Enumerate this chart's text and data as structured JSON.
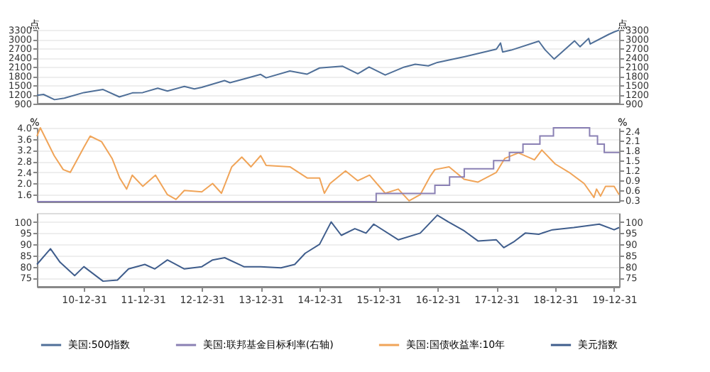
{
  "chart_data": [
    {
      "type": "line",
      "ylabel": "点",
      "y2label": "点",
      "grid": "y",
      "legend": "bottom",
      "tick_labels": "y",
      "xlim": [
        "2010-03-15",
        "2020-01-31"
      ],
      "ylim": [
        900,
        3300
      ],
      "yticks": [
        900,
        1200,
        1500,
        1800,
        2100,
        2400,
        2700,
        3000,
        3300
      ],
      "y2lim": [
        900,
        3300
      ],
      "y2ticks": [
        900,
        1200,
        1500,
        1800,
        2100,
        2400,
        2700,
        3000,
        3300
      ],
      "series": [
        {
          "name": "美国:500指数",
          "color": "#4f6f98",
          "x": [
            "2010-03-15",
            "2010-04-25",
            "2010-07-02",
            "2010-09-01",
            "2010-12-31",
            "2011-04-29",
            "2011-08-08",
            "2011-10-28",
            "2011-12-31",
            "2012-04-02",
            "2012-06-01",
            "2012-09-14",
            "2012-11-15",
            "2012-12-31",
            "2013-05-21",
            "2013-06-24",
            "2013-09-18",
            "2013-12-31",
            "2014-02-03",
            "2014-06-30",
            "2014-10-15",
            "2014-12-31",
            "2015-05-21",
            "2015-08-25",
            "2015-11-03",
            "2016-02-11",
            "2016-06-08",
            "2016-08-15",
            "2016-11-04",
            "2016-12-31",
            "2017-06-19",
            "2017-12-31",
            "2018-01-26",
            "2018-02-08",
            "2018-04-02",
            "2018-09-20",
            "2018-10-29",
            "2018-12-24",
            "2019-04-30",
            "2019-06-03",
            "2019-07-26",
            "2019-08-05",
            "2019-11-27",
            "2019-12-31",
            "2020-01-31"
          ],
          "values": [
            1170,
            1200,
            1030,
            1080,
            1260,
            1360,
            1120,
            1250,
            1260,
            1400,
            1310,
            1460,
            1380,
            1430,
            1650,
            1580,
            1700,
            1850,
            1740,
            1960,
            1860,
            2060,
            2120,
            1870,
            2090,
            1830,
            2090,
            2180,
            2130,
            2240,
            2430,
            2670,
            2870,
            2580,
            2640,
            2930,
            2650,
            2350,
            2940,
            2750,
            3020,
            2840,
            3150,
            3230,
            3290
          ]
        }
      ]
    },
    {
      "type": "line",
      "ylabel": "%",
      "y2label": "%",
      "grid": "y",
      "legend": "bottom",
      "tick_labels": "y",
      "xlim": [
        "2010-03-15",
        "2020-01-31"
      ],
      "ylim": [
        1.35,
        4.0
      ],
      "yticks": [
        1.6,
        {
          "value": 2,
          "label": "2.0"
        },
        2.4,
        2.8,
        3.2,
        3.6,
        {
          "value": 4,
          "label": "4.0"
        }
      ],
      "y2lim": [
        0.25,
        2.5
      ],
      "y2ticks": [
        0.3,
        0.6,
        0.9,
        1.2,
        1.5,
        1.8,
        2.1,
        2.4
      ],
      "series": [
        {
          "name": "美国:联邦基金目标利率(右轴)",
          "color": "#8a80b4",
          "type": "step",
          "axis": "y2",
          "x": [
            "2010-03-15",
            "2015-12-17",
            "2016-12-15",
            "2017-03-16",
            "2017-06-15",
            "2017-12-14",
            "2018-03-22",
            "2018-06-14",
            "2018-09-27",
            "2018-12-20",
            "2019-08-01",
            "2019-09-19",
            "2019-10-31",
            "2020-01-31"
          ],
          "values": [
            0.25,
            0.5,
            0.75,
            1.0,
            1.25,
            1.5,
            1.75,
            2.0,
            2.25,
            2.5,
            2.25,
            2.0,
            1.75,
            1.75
          ]
        },
        {
          "name": "美国:国债收益率:10年",
          "color": "#f0a458",
          "x": [
            "2010-03-15",
            "2010-04-05",
            "2010-06-30",
            "2010-08-25",
            "2010-10-08",
            "2010-12-31",
            "2011-02-08",
            "2011-04-20",
            "2011-06-24",
            "2011-08-10",
            "2011-09-22",
            "2011-10-27",
            "2011-12-31",
            "2012-03-19",
            "2012-06-01",
            "2012-07-24",
            "2012-09-14",
            "2012-12-31",
            "2013-03-08",
            "2013-05-02",
            "2013-07-05",
            "2013-09-05",
            "2013-11-01",
            "2013-12-31",
            "2014-02-03",
            "2014-06-30",
            "2014-10-15",
            "2014-12-31",
            "2015-01-30",
            "2015-03-06",
            "2015-06-10",
            "2015-08-24",
            "2015-11-06",
            "2016-02-11",
            "2016-05-02",
            "2016-07-08",
            "2016-09-15",
            "2016-11-15",
            "2016-12-15",
            "2017-03-13",
            "2017-06-14",
            "2017-09-07",
            "2017-12-31",
            "2018-02-21",
            "2018-05-17",
            "2018-08-24",
            "2018-10-09",
            "2018-12-31",
            "2019-03-27",
            "2019-06-28",
            "2019-08-28",
            "2019-09-13",
            "2019-10-08",
            "2019-11-08",
            "2019-12-31",
            "2020-01-31"
          ],
          "values": [
            3.7,
            4.0,
            3.0,
            2.5,
            2.4,
            3.3,
            3.7,
            3.5,
            2.9,
            2.2,
            1.8,
            2.3,
            1.9,
            2.3,
            1.6,
            1.43,
            1.75,
            1.7,
            2.0,
            1.65,
            2.6,
            2.95,
            2.6,
            3.0,
            2.65,
            2.6,
            2.2,
            2.2,
            1.65,
            2.0,
            2.45,
            2.1,
            2.3,
            1.65,
            1.8,
            1.38,
            1.6,
            2.25,
            2.5,
            2.6,
            2.15,
            2.05,
            2.4,
            2.9,
            3.1,
            2.85,
            3.2,
            2.7,
            2.4,
            2.0,
            1.5,
            1.8,
            1.55,
            1.9,
            1.9,
            1.6
          ]
        }
      ]
    },
    {
      "type": "line",
      "grid": "y",
      "legend": "bottom",
      "xlim": [
        "2010-03-15",
        "2020-01-31"
      ],
      "xticks": [
        {
          "value": "2010-12-31",
          "label": "10-12-31"
        },
        {
          "value": "2011-12-31",
          "label": "11-12-31"
        },
        {
          "value": "2012-12-31",
          "label": "12-12-31"
        },
        {
          "value": "2013-12-31",
          "label": "13-12-31"
        },
        {
          "value": "2014-12-31",
          "label": "14-12-31"
        },
        {
          "value": "2015-12-31",
          "label": "15-12-31"
        },
        {
          "value": "2016-12-31",
          "label": "16-12-31"
        },
        {
          "value": "2017-12-31",
          "label": "17-12-31"
        },
        {
          "value": "2018-12-31",
          "label": "18-12-31"
        },
        {
          "value": "2019-12-31",
          "label": "19-12-31"
        }
      ],
      "ylim": [
        71,
        104
      ],
      "yticks": [
        75,
        80,
        85,
        90,
        95,
        100
      ],
      "y2lim": [
        71,
        104
      ],
      "y2ticks": [
        75,
        80,
        85,
        90,
        95,
        100
      ],
      "series": [
        {
          "name": "美元指数",
          "color": "#3f5d8c",
          "x": [
            "2010-03-15",
            "2010-06-07",
            "2010-08-05",
            "2010-11-04",
            "2010-12-31",
            "2011-04-29",
            "2011-07-27",
            "2011-10-04",
            "2012-01-13",
            "2012-03-15",
            "2012-06-01",
            "2012-09-14",
            "2012-12-31",
            "2013-03-08",
            "2013-05-22",
            "2013-09-18",
            "2013-12-31",
            "2014-05-06",
            "2014-07-30",
            "2014-10-03",
            "2014-12-31",
            "2015-03-13",
            "2015-05-15",
            "2015-08-07",
            "2015-10-15",
            "2015-12-02",
            "2016-05-03",
            "2016-09-15",
            "2016-12-30",
            "2017-03-09",
            "2017-06-15",
            "2017-09-08",
            "2017-12-31",
            "2018-02-15",
            "2018-04-16",
            "2018-06-28",
            "2018-09-20",
            "2018-12-14",
            "2019-04-25",
            "2019-09-30",
            "2019-12-31",
            "2020-01-31"
          ],
          "values": [
            81,
            88,
            82,
            76,
            80,
            73.5,
            74,
            79,
            81,
            79,
            83,
            79,
            80,
            83,
            84,
            80,
            80,
            79.5,
            81,
            86,
            90,
            100,
            94,
            97,
            95,
            99,
            92,
            95,
            103,
            100,
            96,
            91.5,
            92,
            88.5,
            91,
            95,
            94.5,
            96.5,
            97.5,
            99,
            96.5,
            97.5
          ]
        }
      ]
    }
  ]
}
